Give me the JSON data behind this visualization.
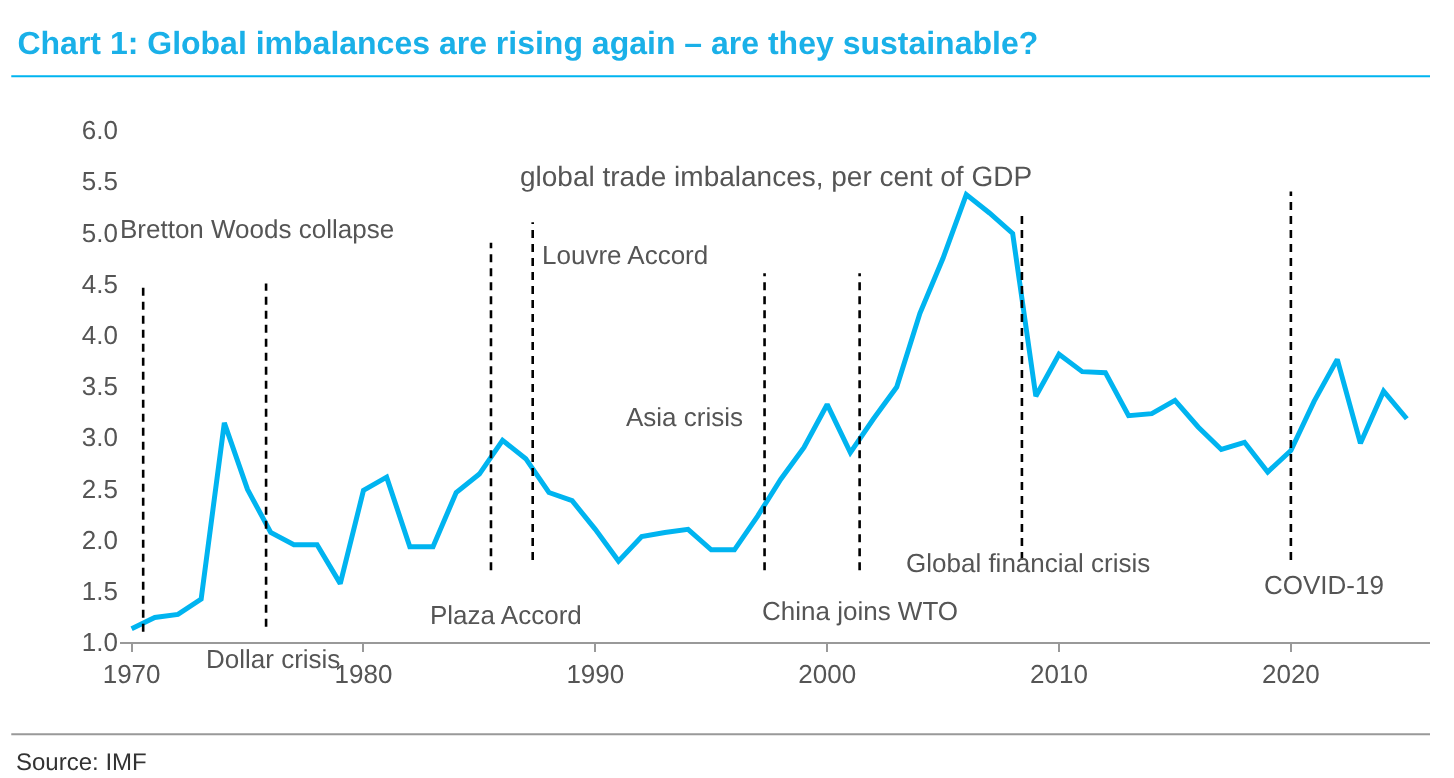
{
  "chart_data": {
    "type": "line",
    "title": "Chart 1: Global imbalances are rising again – are they sustainable?",
    "annotations": [
      "global trade imbalances, per cent of GDP",
      "Source: IMF"
    ],
    "x": [
      1970,
      1971,
      1972,
      1973,
      1974,
      1975,
      1976,
      1977,
      1978,
      1979,
      1980,
      1981,
      1982,
      1983,
      1984,
      1985,
      1986,
      1987,
      1988,
      1989,
      1990,
      1991,
      1992,
      1993,
      1994,
      1995,
      1996,
      1997,
      1998,
      1999,
      2000,
      2001,
      2002,
      2003,
      2004,
      2005,
      2006,
      2007,
      2008,
      2009,
      2010,
      2011,
      2012,
      2013,
      2014,
      2015,
      2016,
      2017,
      2018,
      2019,
      2020,
      2021,
      2022,
      2023,
      2024,
      2025
    ],
    "series": [
      {
        "color": "#00b4f0",
        "values": [
          1.13,
          1.24,
          1.27,
          1.42,
          3.14,
          2.49,
          2.07,
          1.95,
          1.95,
          1.57,
          2.48,
          2.61,
          1.93,
          1.93,
          2.46,
          2.64,
          2.97,
          2.79,
          2.46,
          2.38,
          2.1,
          1.79,
          2.03,
          2.07,
          2.1,
          1.9,
          1.9,
          2.23,
          2.59,
          2.9,
          3.32,
          2.85,
          3.18,
          3.49,
          4.21,
          4.75,
          5.37,
          5.19,
          4.99,
          3.4,
          3.81,
          3.64,
          3.63,
          3.21,
          3.23,
          3.36,
          3.1,
          2.88,
          2.95,
          2.66,
          2.87,
          3.35,
          3.76,
          2.94,
          3.45,
          3.18
        ]
      }
    ],
    "xlim": [
      1969.5,
      2026
    ],
    "xticks": [
      1970,
      1980,
      1990,
      2000,
      2010,
      2020
    ],
    "ylim": [
      1,
      6
    ],
    "yticks": [
      {
        "value": 1,
        "label": "1.0"
      },
      1.5,
      {
        "value": 2,
        "label": "2.0"
      },
      2.5,
      {
        "value": 3,
        "label": "3.0"
      },
      3.5,
      {
        "value": 4,
        "label": "4.0"
      },
      4.5,
      {
        "value": 5,
        "label": "5.0"
      },
      5.5,
      {
        "value": 6,
        "label": "6.0"
      }
    ],
    "ref_lines": [
      {
        "axis": "x",
        "value": 1970.5,
        "label": "Bretton Woods collapse",
        "line_style": "dashed",
        "color": "#000000"
      },
      {
        "axis": "x",
        "value": 1975.8,
        "label": "Dollar crisis",
        "line_style": "dashed",
        "color": "#000000"
      },
      {
        "axis": "x",
        "value": 1985.5,
        "label": "Plaza Accord",
        "line_style": "dashed",
        "color": "#000000"
      },
      {
        "axis": "x",
        "value": 1987.3,
        "label": "Louvre Accord",
        "line_style": "dashed",
        "color": "#000000"
      },
      {
        "axis": "x",
        "value": 1997.3,
        "label": "Asia crisis",
        "line_style": "dashed",
        "color": "#000000"
      },
      {
        "axis": "x",
        "value": 2001.4,
        "label": "China joins WTO",
        "line_style": "dashed",
        "color": "#000000"
      },
      {
        "axis": "x",
        "value": 2008.4,
        "label": "Global financial crisis",
        "line_style": "dashed",
        "color": "#000000"
      },
      {
        "axis": "x",
        "value": 2020,
        "label": "COVID-19",
        "line_style": "dashed",
        "color": "#000000"
      }
    ],
    "marker": "none",
    "line_style": "solid"
  }
}
